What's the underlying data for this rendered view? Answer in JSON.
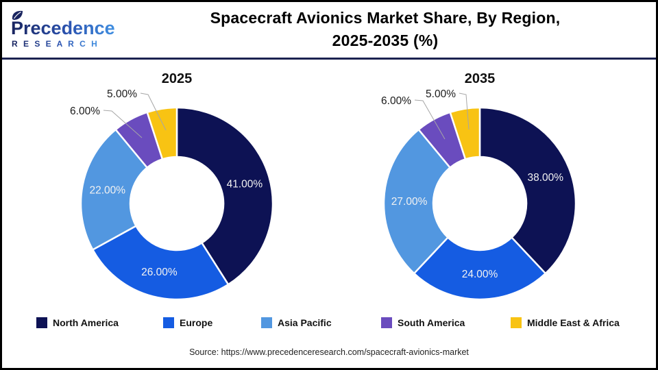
{
  "logo": {
    "name": "Precedence",
    "subtitle": "R E S E A R C H"
  },
  "header": {
    "title_line1": "Spacecraft Avionics Market Share, By Region,",
    "title_line2": "2025-2035 (%)"
  },
  "colors": {
    "series": [
      "#0d1254",
      "#155ce2",
      "#5297e0",
      "#6a4cbe",
      "#f8c313"
    ],
    "inside_label": "#f2f2f2",
    "outside_label": "#1a1a1a",
    "leader_line": "#a6a6a6",
    "header_rule": "#1b2150",
    "logo_navy": "#19245f",
    "logo_blue": "#4190e2"
  },
  "chart_data": [
    {
      "type": "pie",
      "donut": true,
      "title": "2025",
      "categories": [
        "North America",
        "Europe",
        "Asia Pacific",
        "South America",
        "Middle East & Africa"
      ],
      "values": [
        41,
        26,
        22,
        6,
        5
      ],
      "labels": [
        "41.00%",
        "26.00%",
        "22.00%",
        "6.00%",
        "5.00%"
      ],
      "start_angle_deg": 0,
      "direction": "clockwise",
      "legend_position": "bottom"
    },
    {
      "type": "pie",
      "donut": true,
      "title": "2035",
      "categories": [
        "North America",
        "Europe",
        "Asia Pacific",
        "South America",
        "Middle East & Africa"
      ],
      "values": [
        38,
        24,
        27,
        6,
        5
      ],
      "labels": [
        "38.00%",
        "24.00%",
        "27.00%",
        "6.00%",
        "5.00%"
      ],
      "start_angle_deg": 0,
      "direction": "clockwise",
      "legend_position": "bottom"
    }
  ],
  "footer": {
    "source": "Source: https://www.precedenceresearch.com/spacecraft-avionics-market"
  }
}
